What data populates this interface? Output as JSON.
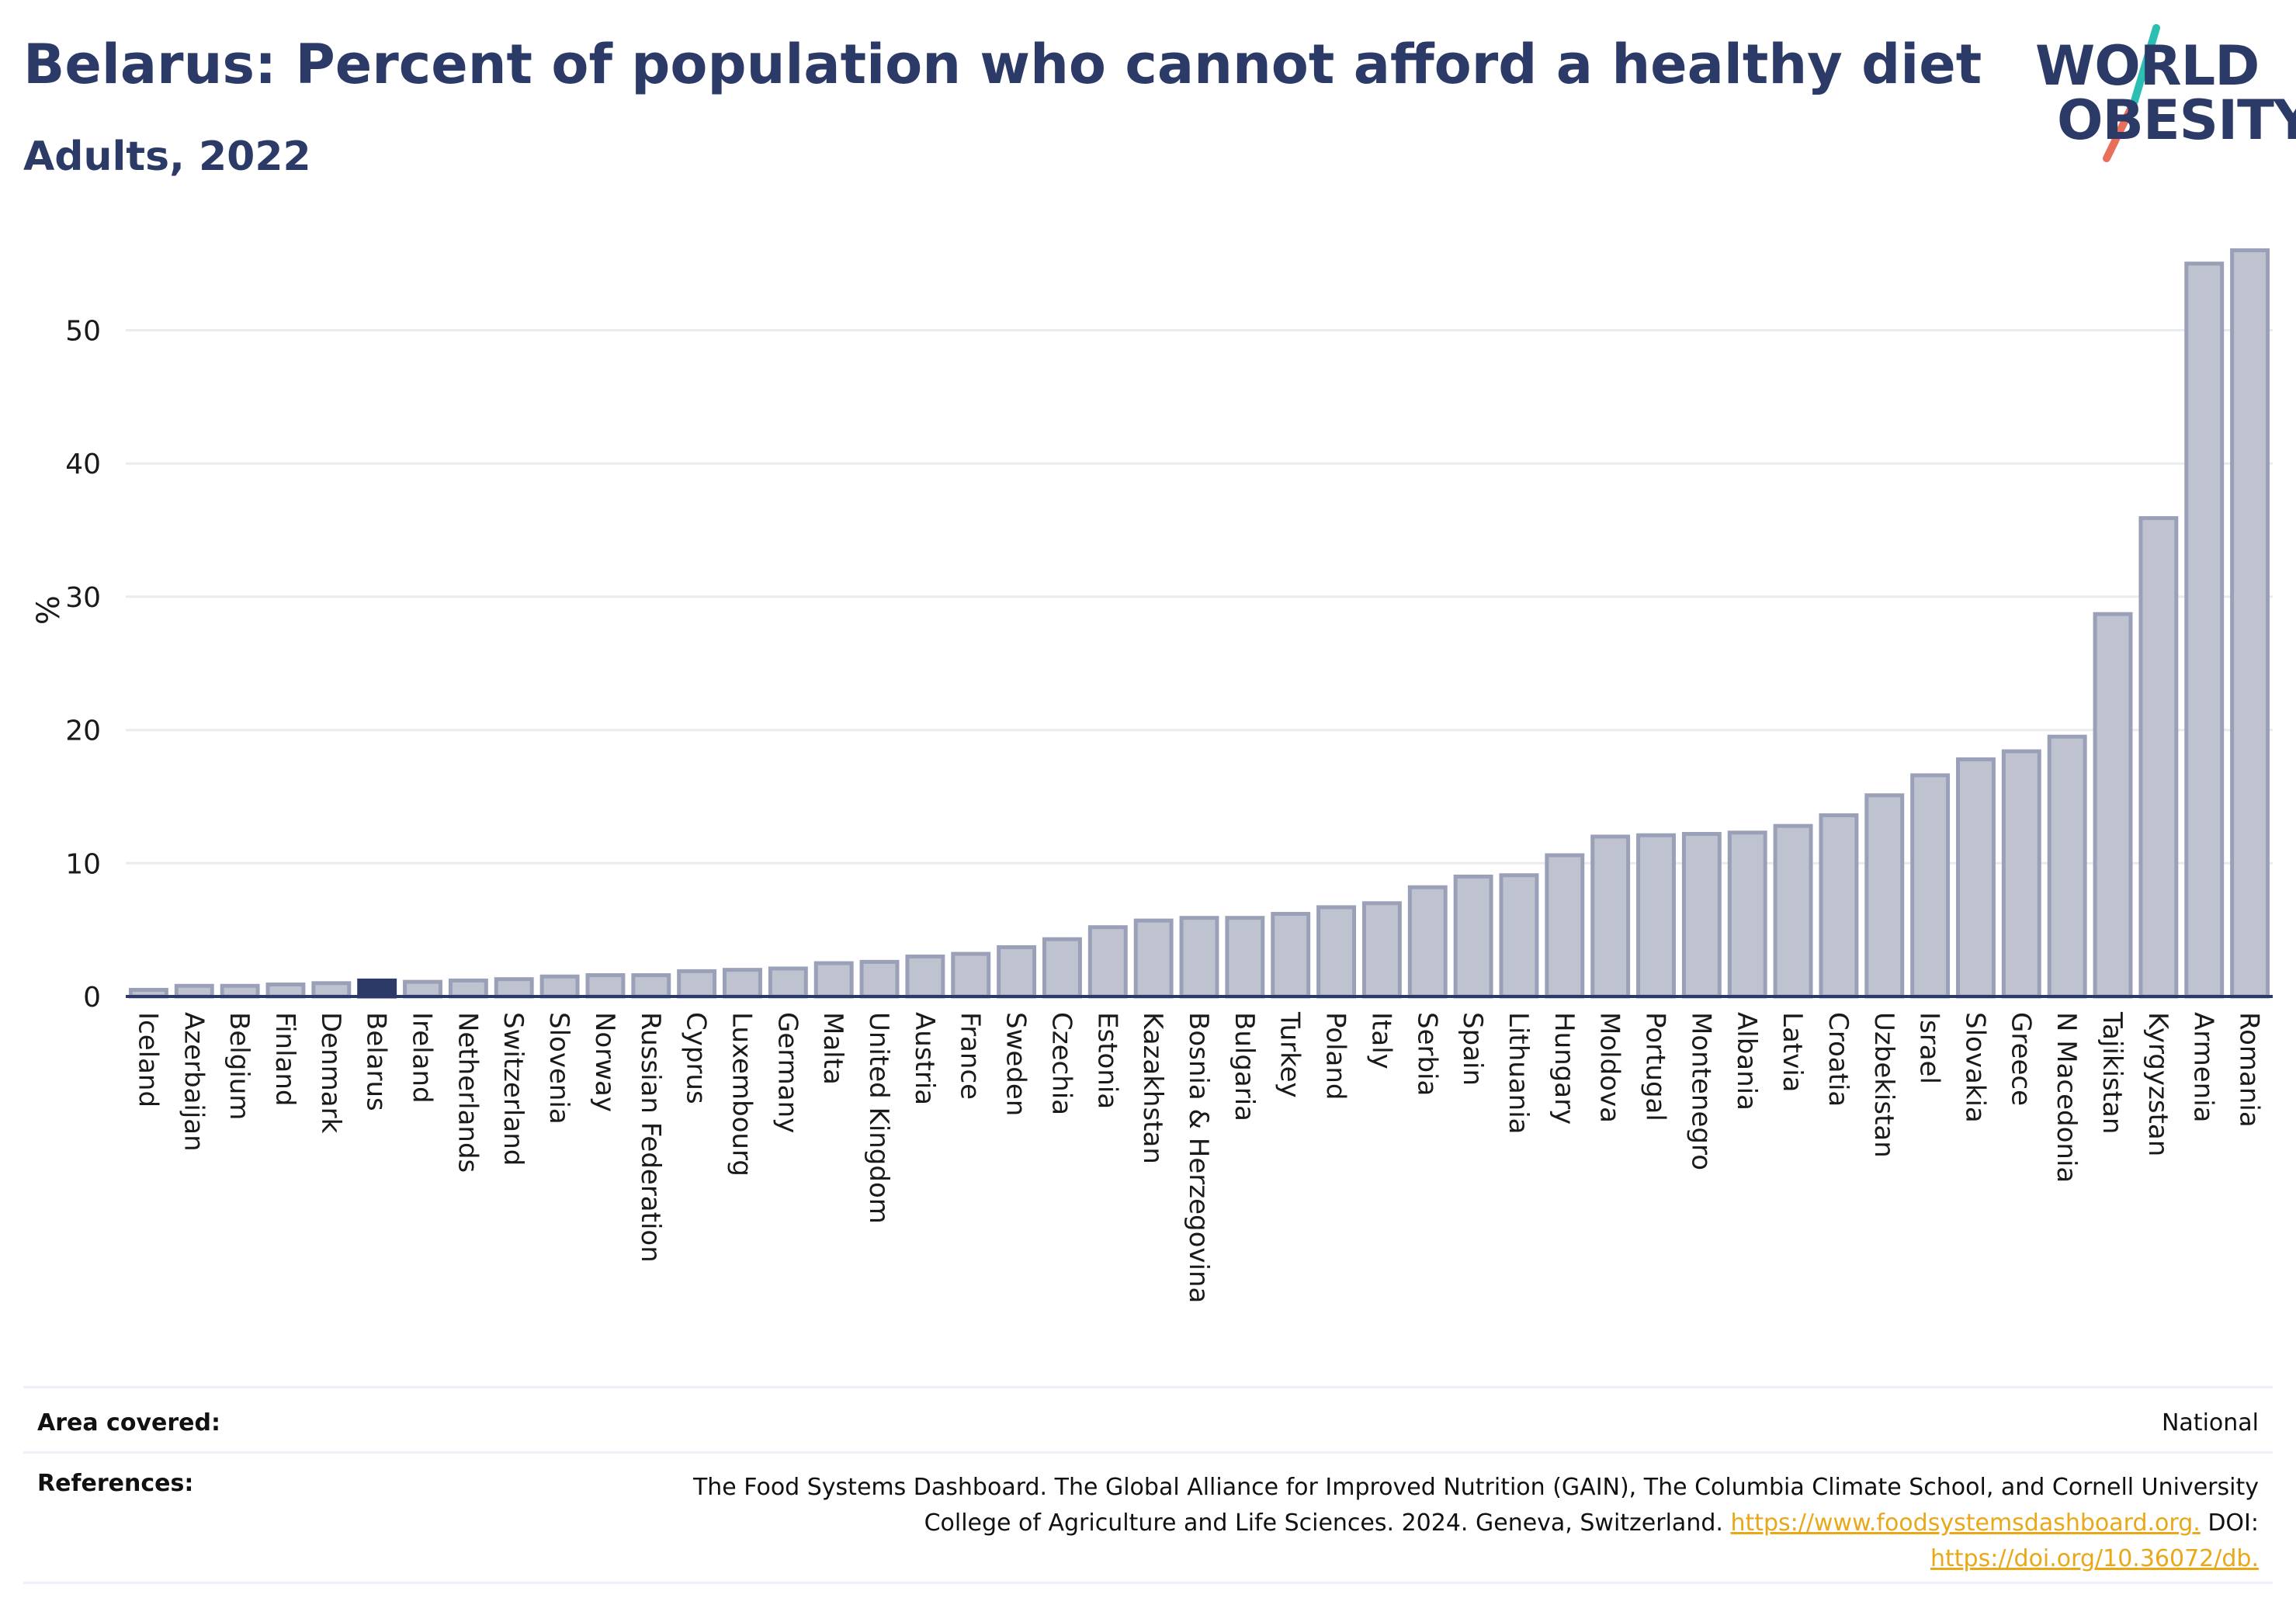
{
  "header": {
    "title": "Belarus: Percent of population who cannot afford a healthy diet",
    "subtitle": "Adults, 2022"
  },
  "logo": {
    "line1": "WORLD",
    "line2": "OBESITY"
  },
  "colors": {
    "bar": "#bfc3d0",
    "bar_stroke": "#9aa0b7",
    "highlight": "#2b3a67",
    "grid": "#e9ebf0",
    "axis": "#2b3a67",
    "logo_teal": "#2bbfb3",
    "logo_coral": "#e8705a"
  },
  "chart_data": {
    "type": "bar",
    "ylabel": "%",
    "xlabel": "",
    "ylim": [
      0,
      58
    ],
    "yticks": [
      0,
      10,
      20,
      30,
      40,
      50
    ],
    "grid": true,
    "highlight": "Belarus",
    "categories": [
      "Iceland",
      "Azerbaijan",
      "Belgium",
      "Finland",
      "Denmark",
      "Belarus",
      "Ireland",
      "Netherlands",
      "Switzerland",
      "Slovenia",
      "Norway",
      "Russian Federation",
      "Cyprus",
      "Luxembourg",
      "Germany",
      "Malta",
      "United Kingdom",
      "Austria",
      "France",
      "Sweden",
      "Czechia",
      "Estonia",
      "Kazakhstan",
      "Bosnia & Herzegovina",
      "Bulgaria",
      "Turkey",
      "Poland",
      "Italy",
      "Serbia",
      "Spain",
      "Lithuania",
      "Hungary",
      "Moldova",
      "Portugal",
      "Montenegro",
      "Albania",
      "Latvia",
      "Croatia",
      "Uzbekistan",
      "Israel",
      "Slovakia",
      "Greece",
      "N Macedonia",
      "Tajikistan",
      "Kyrgyzstan",
      "Armenia",
      "Romania"
    ],
    "values": [
      0.5,
      0.8,
      0.8,
      0.9,
      1.0,
      1.2,
      1.1,
      1.2,
      1.3,
      1.5,
      1.6,
      1.6,
      1.9,
      2.0,
      2.1,
      2.5,
      2.6,
      3.0,
      3.2,
      3.7,
      4.3,
      5.2,
      5.7,
      5.9,
      5.9,
      6.2,
      6.7,
      7.0,
      8.2,
      9.0,
      9.1,
      10.6,
      12.0,
      12.1,
      12.2,
      12.3,
      12.8,
      13.6,
      15.1,
      16.6,
      17.8,
      18.4,
      19.5,
      28.7,
      35.9,
      55.0,
      56.0
    ]
  },
  "meta": {
    "area_label": "Area covered:",
    "area_value": "National",
    "refs_label": "References:",
    "refs_text1": "The Food Systems Dashboard. The Global Alliance for Improved Nutrition (GAIN), The Columbia Climate School, and Cornell University College of Agriculture and Life Sciences. 2024. Geneva, Switzerland.",
    "refs_link1": "https://www.foodsystemsdashboard.org.",
    "refs_doi_label": "DOI:",
    "refs_link2": "https://doi.org/10.36072/db."
  }
}
